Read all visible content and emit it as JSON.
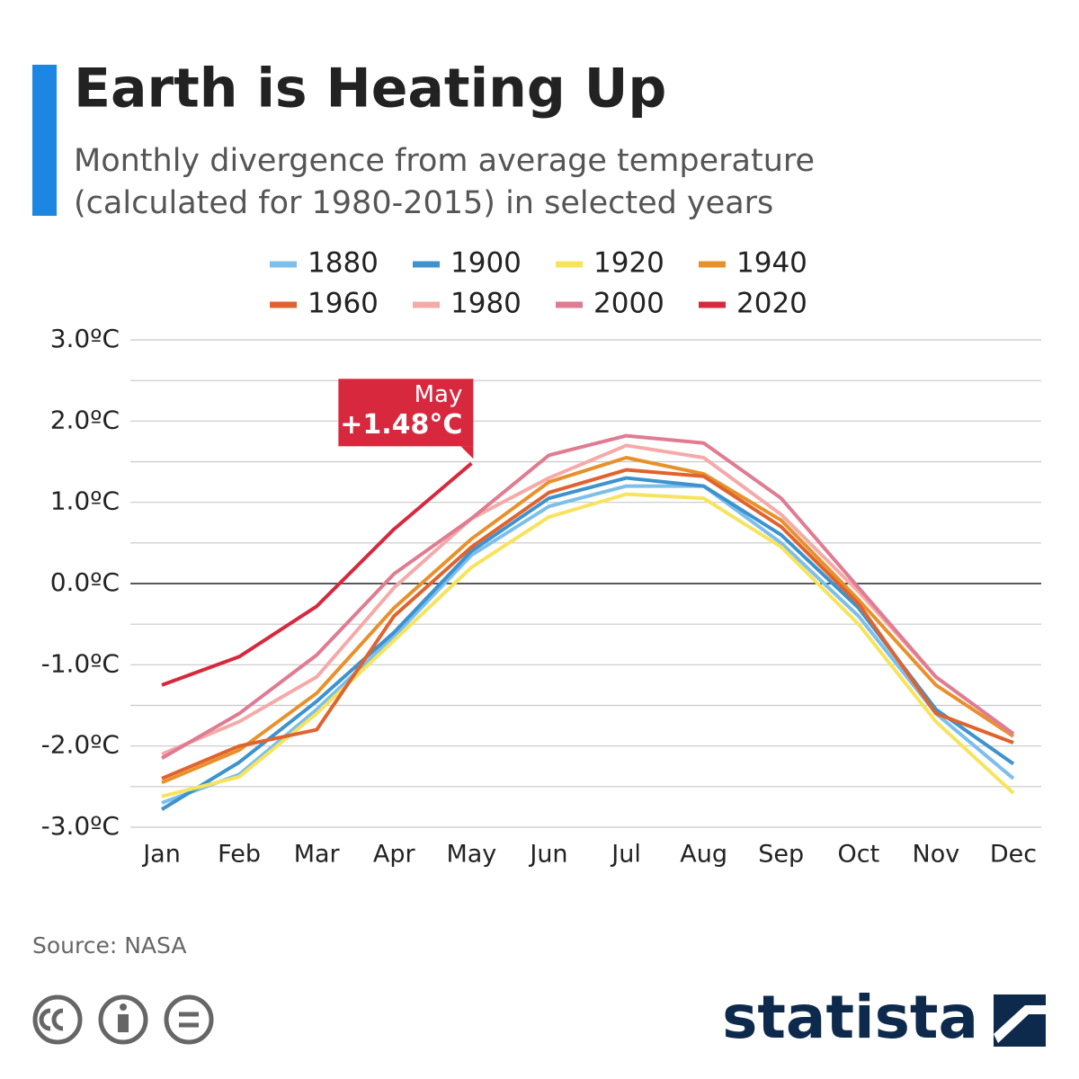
{
  "chart_data": {
    "type": "line",
    "title": "Earth is Heating Up",
    "subtitle": [
      "Monthly divergence from average temperature",
      "(calculated for 1980-2015) in selected years"
    ],
    "categories": [
      "Jan",
      "Feb",
      "Mar",
      "Apr",
      "May",
      "Jun",
      "Jul",
      "Aug",
      "Sep",
      "Oct",
      "Nov",
      "Dec"
    ],
    "series": [
      {
        "name": "1880",
        "color": "#7dbfeb",
        "values": [
          -2.7,
          -2.35,
          -1.55,
          -0.65,
          0.35,
          0.95,
          1.2,
          1.2,
          0.5,
          -0.4,
          -1.6,
          -2.4
        ]
      },
      {
        "name": "1900",
        "color": "#3c93cf",
        "values": [
          -2.78,
          -2.2,
          -1.45,
          -0.6,
          0.4,
          1.05,
          1.3,
          1.2,
          0.6,
          -0.3,
          -1.55,
          -2.22
        ]
      },
      {
        "name": "1920",
        "color": "#f7e35c",
        "values": [
          -2.62,
          -2.38,
          -1.6,
          -0.7,
          0.2,
          0.82,
          1.1,
          1.05,
          0.45,
          -0.5,
          -1.7,
          -2.58
        ]
      },
      {
        "name": "1940",
        "color": "#e8912b",
        "values": [
          -2.45,
          -2.05,
          -1.35,
          -0.3,
          0.55,
          1.25,
          1.55,
          1.35,
          0.78,
          -0.2,
          -1.25,
          -1.88
        ]
      },
      {
        "name": "1960",
        "color": "#e0632f",
        "values": [
          -2.4,
          -2.0,
          -1.8,
          -0.4,
          0.45,
          1.12,
          1.4,
          1.32,
          0.7,
          -0.25,
          -1.6,
          -1.96
        ]
      },
      {
        "name": "1980",
        "color": "#f5aaa9",
        "values": [
          -2.1,
          -1.7,
          -1.15,
          -0.05,
          0.8,
          1.3,
          1.7,
          1.55,
          0.85,
          -0.1,
          -1.15,
          -1.85
        ]
      },
      {
        "name": "2000",
        "color": "#e07b92",
        "values": [
          -2.15,
          -1.6,
          -0.88,
          0.12,
          0.8,
          1.58,
          1.82,
          1.73,
          1.05,
          -0.05,
          -1.15,
          -1.85
        ]
      },
      {
        "name": "2020",
        "color": "#d7283e",
        "values": [
          -1.25,
          -0.9,
          -0.28,
          0.67,
          1.48,
          null,
          null,
          null,
          null,
          null,
          null,
          null
        ]
      }
    ],
    "ylim": [
      -3,
      3
    ],
    "yticks": [
      {
        "value": 3,
        "label": "3.0ºC"
      },
      {
        "value": 2,
        "label": "2.0ºC"
      },
      {
        "value": 1,
        "label": "1.0ºC"
      },
      {
        "value": 0,
        "label": "0.0ºC"
      },
      {
        "value": -1,
        "label": "-1.0ºC"
      },
      {
        "value": -2,
        "label": "-2.0ºC"
      },
      {
        "value": -3,
        "label": "-3.0ºC"
      }
    ],
    "yticks_minor": [
      2.5,
      1.5,
      0.5,
      -0.5,
      -1.5,
      -2.5
    ],
    "grid": true,
    "annotation": {
      "series": 7,
      "index": 4,
      "label": "May",
      "text": "+1.48°C",
      "color": "#d7283e"
    },
    "source": "Source: NASA",
    "brand": "statista"
  }
}
